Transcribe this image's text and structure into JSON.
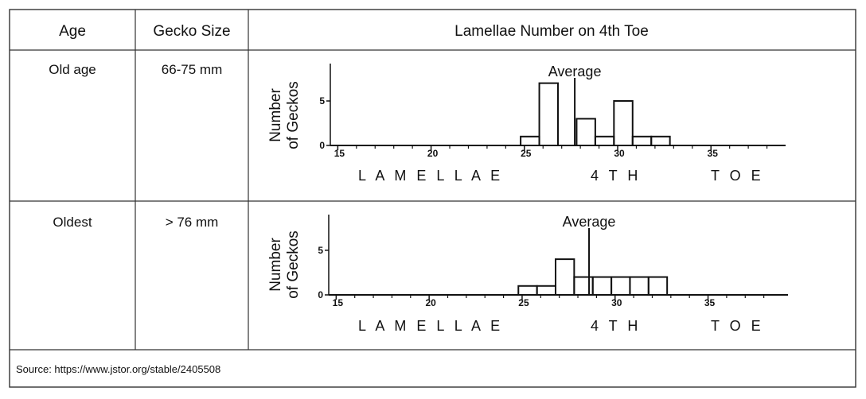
{
  "table": {
    "headers": [
      "Age",
      "Gecko Size",
      "Lamellae Number on 4th Toe"
    ],
    "rows": [
      {
        "age": "Old age",
        "size": "66-75 mm",
        "chart": {
          "type": "histogram",
          "color": "#111111",
          "bins": [
            24.8,
            25.8,
            26.8,
            27.8,
            28.8,
            29.8,
            30.8,
            31.8,
            32.8
          ],
          "values": [
            1,
            7,
            0,
            3,
            1,
            5,
            1,
            1
          ],
          "xlim": [
            14.6,
            39
          ],
          "ylim": [
            0,
            9.2
          ],
          "xticks": [
            15,
            20,
            25,
            30,
            35
          ],
          "xticks_minor": [
            16,
            17,
            18,
            19,
            21,
            22,
            23,
            24,
            26,
            27,
            28,
            29,
            31,
            32,
            33,
            34,
            36,
            37,
            38
          ],
          "yticks": [
            0,
            5
          ],
          "ylabel": [
            "Number",
            "of Geckos"
          ],
          "xlabel": [
            "L A M E L L A E",
            "4 T H",
            "T O E"
          ],
          "annotation": {
            "text": "Average",
            "x": 27.7
          }
        }
      },
      {
        "age": "Oldest",
        "size": "> 76 mm",
        "chart": {
          "type": "histogram",
          "color": "#111111",
          "bins": [
            24.8,
            25.8,
            26.8,
            27.8,
            28.8,
            29.8,
            30.8,
            31.8,
            32.8
          ],
          "values": [
            1,
            1,
            4,
            2,
            2,
            2,
            2,
            2
          ],
          "xlim": [
            14.6,
            39.3
          ],
          "ylim": [
            0,
            9
          ],
          "xticks": [
            15,
            20,
            25,
            30,
            35
          ],
          "xticks_minor": [
            16,
            17,
            18,
            19,
            21,
            22,
            23,
            24,
            26,
            27,
            28,
            29,
            31,
            32,
            33,
            34,
            36,
            37,
            38
          ],
          "yticks": [
            0,
            5
          ],
          "ylabel": [
            "Number",
            "of Geckos"
          ],
          "xlabel": [
            "L A M E L L A E",
            "4 T H",
            "T O E"
          ],
          "annotation": {
            "text": "Average",
            "x": 28.6
          }
        }
      }
    ]
  },
  "source": "Source:  https://www.jstor.org/stable/2405508"
}
